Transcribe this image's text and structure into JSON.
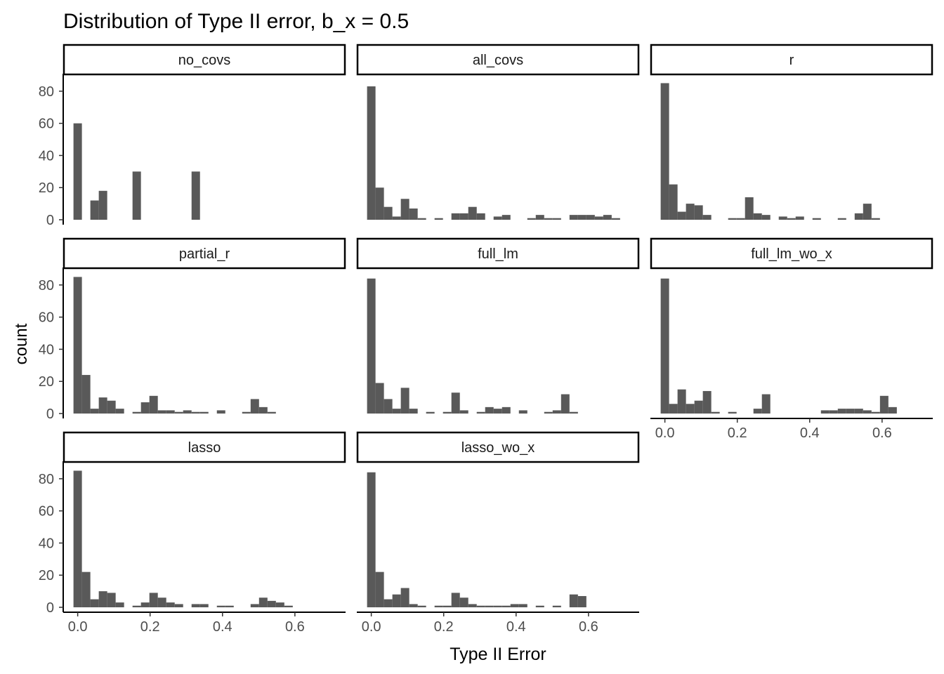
{
  "chart_data": {
    "type": "bar",
    "title": "Distribution of Type II error, b_x = 0.5",
    "xlabel": "Type II Error",
    "ylabel": "count",
    "xlim": [
      -0.04,
      0.74
    ],
    "ylim": [
      0,
      90
    ],
    "x_ticks": [
      0.0,
      0.2,
      0.4,
      0.6
    ],
    "x_tick_labels": [
      "0.0",
      "0.2",
      "0.4",
      "0.6"
    ],
    "y_ticks": [
      0,
      20,
      40,
      60,
      80
    ],
    "y_tick_labels": [
      "0",
      "20",
      "40",
      "60",
      "80"
    ],
    "bin_width": 0.0233,
    "bin_start": 0.0,
    "bar_color": "#595959",
    "grid": false,
    "facets": [
      {
        "name": "no_covs",
        "counts": [
          60,
          0,
          12,
          18,
          0,
          0,
          0,
          30,
          0,
          0,
          0,
          0,
          0,
          0,
          30,
          0,
          0,
          0,
          0,
          0,
          0,
          0,
          0,
          0,
          0,
          0,
          0,
          0,
          0,
          0
        ]
      },
      {
        "name": "all_covs",
        "counts": [
          83,
          20,
          8,
          2,
          13,
          7,
          1,
          0,
          1,
          0,
          4,
          4,
          8,
          4,
          0,
          2,
          3,
          0,
          0,
          1,
          3,
          1,
          1,
          0,
          3,
          3,
          3,
          2,
          3,
          1
        ]
      },
      {
        "name": "r",
        "counts": [
          85,
          22,
          5,
          10,
          9,
          3,
          0,
          0,
          1,
          1,
          14,
          4,
          3,
          0,
          2,
          1,
          2,
          0,
          1,
          0,
          0,
          1,
          0,
          4,
          10,
          1,
          0,
          0,
          0,
          0
        ]
      },
      {
        "name": "partial_r",
        "counts": [
          85,
          24,
          3,
          10,
          8,
          3,
          0,
          1,
          7,
          11,
          2,
          2,
          1,
          2,
          1,
          1,
          0,
          2,
          0,
          0,
          1,
          9,
          4,
          1,
          0,
          0,
          0,
          0,
          0,
          0
        ]
      },
      {
        "name": "full_lm",
        "counts": [
          84,
          19,
          9,
          3,
          16,
          3,
          0,
          1,
          0,
          1,
          13,
          2,
          0,
          1,
          4,
          3,
          4,
          0,
          2,
          0,
          0,
          1,
          2,
          12,
          1,
          0,
          0,
          0,
          0,
          0
        ]
      },
      {
        "name": "full_lm_wo_x",
        "counts": [
          84,
          6,
          15,
          6,
          8,
          14,
          1,
          0,
          1,
          0,
          0,
          3,
          12,
          0,
          0,
          0,
          0,
          0,
          0,
          2,
          2,
          3,
          3,
          3,
          2,
          1,
          11,
          4,
          0,
          0
        ]
      },
      {
        "name": "lasso",
        "counts": [
          85,
          22,
          5,
          10,
          9,
          3,
          0,
          1,
          3,
          9,
          6,
          3,
          2,
          0,
          2,
          2,
          0,
          1,
          1,
          0,
          0,
          2,
          6,
          4,
          3,
          1,
          0,
          0,
          0,
          0
        ]
      },
      {
        "name": "lasso_wo_x",
        "counts": [
          84,
          22,
          5,
          8,
          12,
          2,
          1,
          0,
          1,
          1,
          9,
          6,
          2,
          1,
          1,
          1,
          1,
          2,
          2,
          0,
          1,
          0,
          1,
          0,
          8,
          7,
          0,
          0,
          0,
          0
        ]
      }
    ]
  }
}
